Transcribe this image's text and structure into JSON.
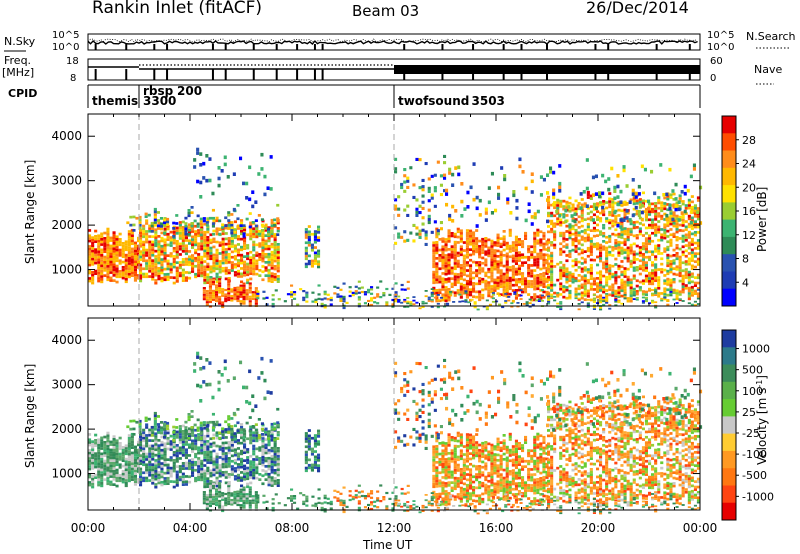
{
  "header": {
    "title": "Rankin Inlet (fitACF)",
    "beam": "Beam 03",
    "date": "26/Dec/2014"
  },
  "status_panel": {
    "nsky_label": "N.Sky",
    "nsearch_label": "N.Search",
    "nsky_ticks": [
      "10^5",
      "10^0"
    ],
    "nsearch_ticks": [
      "10^5",
      "10^0"
    ],
    "freq_label_1": "Freq.",
    "freq_label_2": "[MHz]",
    "freq_ticks": [
      "18",
      "8"
    ],
    "nave_label": "Nave",
    "nave_ticks": [
      "60",
      "0"
    ],
    "cpid_label": "CPID",
    "cpid_entries": [
      {
        "name": "themis",
        "id": "3300",
        "start_hour": 0.0
      },
      {
        "name": "rbsp",
        "id": "200",
        "start_hour": 2.0
      },
      {
        "name": "twofsound",
        "id": "3503",
        "start_hour": 12.0
      }
    ]
  },
  "axes": {
    "xlabel": "Time UT",
    "x_ticks": [
      "00:00",
      "04:00",
      "08:00",
      "12:00",
      "16:00",
      "20:00",
      "00:00"
    ],
    "ylabel": "Slant Range [km]",
    "y_ticks": [
      "1000",
      "2000",
      "3000",
      "4000"
    ]
  },
  "power_colorbar": {
    "label": "Power [dB]",
    "ticks": [
      "28",
      "24",
      "20",
      "16",
      "12",
      "8",
      "4"
    ],
    "colors": [
      "#e60000",
      "#ff4d00",
      "#ff8c1a",
      "#ffb800",
      "#ffe100",
      "#9acd32",
      "#3cb371",
      "#2e8b57",
      "#2952b0",
      "#1e3cb4",
      "#0000ff"
    ]
  },
  "velocity_colorbar": {
    "label": "Velocity [m s^-1]",
    "ticks": [
      "1000",
      "500",
      "100",
      "25",
      "-25",
      "-100",
      "-500",
      "-1000"
    ],
    "colors": [
      "#1e3ca0",
      "#2c7a8a",
      "#3c8c5a",
      "#5ab04a",
      "#66cc33",
      "#c8c8c8",
      "#ffcc33",
      "#ff9922",
      "#ff7711",
      "#ff4411",
      "#e60000"
    ]
  },
  "chart_data": [
    {
      "type": "heatmap",
      "name": "power",
      "x_range_hours": [
        0,
        24
      ],
      "y_range_km": [
        180,
        4500
      ],
      "clim_db": [
        0,
        30
      ],
      "note_regions": [
        {
          "t0": 0.0,
          "t1": 7.5,
          "r0": 700,
          "r1": 1800,
          "value": 25
        },
        {
          "t0": 4.5,
          "t1": 6.5,
          "r0": 200,
          "r1": 600,
          "value": 24
        },
        {
          "t0": 8.5,
          "t1": 9.0,
          "r0": 1000,
          "r1": 2000,
          "value": 14
        },
        {
          "t0": 13.5,
          "t1": 24.0,
          "r0": 300,
          "r1": 2500,
          "value": 27
        }
      ]
    },
    {
      "type": "heatmap",
      "name": "velocity",
      "x_range_hours": [
        0,
        24
      ],
      "y_range_km": [
        180,
        4500
      ],
      "clim_ms": [
        -1000,
        1000
      ],
      "note_regions": [
        {
          "t0": 0.0,
          "t1": 7.5,
          "r0": 500,
          "r1": 2000,
          "value": 150
        },
        {
          "t0": 4.5,
          "t1": 6.5,
          "r0": 200,
          "r1": 700,
          "value": 100
        },
        {
          "t0": 13.5,
          "t1": 24.0,
          "r0": 300,
          "r1": 2500,
          "value": -200
        }
      ]
    }
  ]
}
